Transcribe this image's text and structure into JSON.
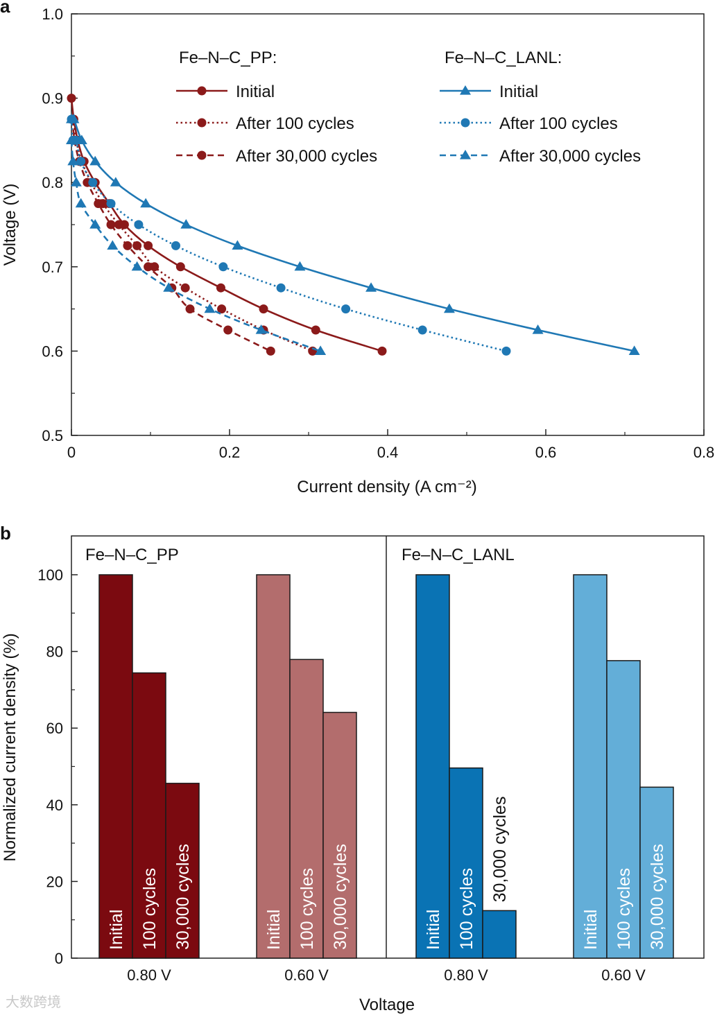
{
  "panels": [
    {
      "panel_letter": "a",
      "chart_data": {
        "type": "line",
        "xlabel": "Current density (A cm⁻²)",
        "ylabel": "Voltage (V)",
        "xlim": [
          0,
          0.8
        ],
        "ylim": [
          0.5,
          1.0
        ],
        "xticks": [
          "0",
          "0.2",
          "0.4",
          "0.6",
          "0.8"
        ],
        "yticks": [
          "0.5",
          "0.6",
          "0.7",
          "0.8",
          "0.9",
          "1.0"
        ],
        "grid": false,
        "legend_groups": [
          {
            "title": "Fe–N–C_PP:",
            "position": "top-left"
          },
          {
            "title": "Fe–N–C_LANL:",
            "position": "top-right"
          }
        ],
        "series": [
          {
            "name": "Initial",
            "group": "Fe–N–C_PP",
            "color": "#8b1a1a",
            "line": "solid",
            "marker": "circle",
            "x": [
              0.0,
              0.003,
              0.008,
              0.016,
              0.03,
              0.048,
              0.067,
              0.097,
              0.138,
              0.189,
              0.243,
              0.309,
              0.393
            ],
            "y": [
              0.9,
              0.875,
              0.85,
              0.825,
              0.8,
              0.775,
              0.75,
              0.725,
              0.7,
              0.675,
              0.65,
              0.625,
              0.6
            ]
          },
          {
            "name": "After 100 cycles",
            "group": "Fe–N–C_PP",
            "color": "#8b1a1a",
            "line": "dotted",
            "marker": "circle",
            "x": [
              0.002,
              0.006,
              0.013,
              0.025,
              0.04,
              0.06,
              0.083,
              0.105,
              0.144,
              0.19,
              0.243,
              0.305
            ],
            "y": [
              0.875,
              0.85,
              0.825,
              0.8,
              0.775,
              0.75,
              0.725,
              0.7,
              0.675,
              0.65,
              0.625,
              0.6
            ]
          },
          {
            "name": "After 30,000 cycles",
            "group": "Fe–N–C_PP",
            "color": "#8b1a1a",
            "line": "dashed",
            "marker": "circle",
            "x": [
              0.001,
              0.004,
              0.01,
              0.02,
              0.034,
              0.05,
              0.071,
              0.097,
              0.127,
              0.15,
              0.198,
              0.252
            ],
            "y": [
              0.875,
              0.85,
              0.825,
              0.8,
              0.775,
              0.75,
              0.725,
              0.7,
              0.675,
              0.65,
              0.625,
              0.6
            ]
          },
          {
            "name": "Initial",
            "group": "Fe–N–C_LANL",
            "color": "#1f78b4",
            "line": "solid",
            "marker": "triangle",
            "x": [
              0.0,
              0.003,
              0.013,
              0.03,
              0.056,
              0.094,
              0.145,
              0.21,
              0.289,
              0.379,
              0.478,
              0.59,
              0.712
            ],
            "y": [
              0.875,
              0.875,
              0.85,
              0.825,
              0.8,
              0.775,
              0.75,
              0.725,
              0.7,
              0.675,
              0.65,
              0.625,
              0.6
            ]
          },
          {
            "name": "After 100 cycles",
            "group": "Fe–N–C_LANL",
            "color": "#1f78b4",
            "line": "dotted",
            "marker": "circle",
            "x": [
              0.0,
              0.002,
              0.006,
              0.012,
              0.027,
              0.05,
              0.085,
              0.132,
              0.192,
              0.265,
              0.347,
              0.444,
              0.55
            ],
            "y": [
              0.875,
              0.85,
              0.85,
              0.825,
              0.8,
              0.775,
              0.75,
              0.725,
              0.7,
              0.675,
              0.65,
              0.625,
              0.6
            ]
          },
          {
            "name": "After 30,000 cycles",
            "group": "Fe–N–C_LANL",
            "color": "#1f78b4",
            "line": "dashed",
            "marker": "triangle",
            "x": [
              0.0,
              0.002,
              0.006,
              0.012,
              0.03,
              0.052,
              0.083,
              0.123,
              0.175,
              0.24,
              0.315
            ],
            "y": [
              0.85,
              0.825,
              0.8,
              0.775,
              0.75,
              0.725,
              0.7,
              0.675,
              0.65,
              0.625,
              0.6
            ]
          }
        ]
      }
    },
    {
      "panel_letter": "b",
      "chart_data": {
        "type": "bar",
        "xlabel": "Voltage",
        "ylabel": "Normalized current density (%)",
        "ylim": [
          0,
          110
        ],
        "yticks": [
          "0",
          "20",
          "40",
          "60",
          "80",
          "100"
        ],
        "grid": false,
        "sections": [
          {
            "title": "Fe–N–C_PP",
            "groups": [
              {
                "label": "0.80 V",
                "color": "#7b0a10",
                "bars": [
                  {
                    "label": "Initial",
                    "value": 100
                  },
                  {
                    "label": "100 cycles",
                    "value": 74.4
                  },
                  {
                    "label": "30,000 cycles",
                    "value": 45.6
                  }
                ]
              },
              {
                "label": "0.60 V",
                "color": "#b36d6d",
                "bars": [
                  {
                    "label": "Initial",
                    "value": 100
                  },
                  {
                    "label": "100 cycles",
                    "value": 77.9
                  },
                  {
                    "label": "30,000 cycles",
                    "value": 64.1
                  }
                ]
              }
            ]
          },
          {
            "title": "Fe–N–C_LANL",
            "groups": [
              {
                "label": "0.80 V",
                "color": "#0a73b4",
                "bars": [
                  {
                    "label": "Initial",
                    "value": 100
                  },
                  {
                    "label": "100 cycles",
                    "value": 49.6
                  },
                  {
                    "label": "30,000 cycles",
                    "value": 12.4
                  }
                ]
              },
              {
                "label": "0.60 V",
                "color": "#63aed8",
                "bars": [
                  {
                    "label": "Initial",
                    "value": 100
                  },
                  {
                    "label": "100 cycles",
                    "value": 77.6
                  },
                  {
                    "label": "30,000 cycles",
                    "value": 44.6
                  }
                ]
              }
            ]
          }
        ]
      }
    }
  ],
  "watermark": "大数跨境"
}
